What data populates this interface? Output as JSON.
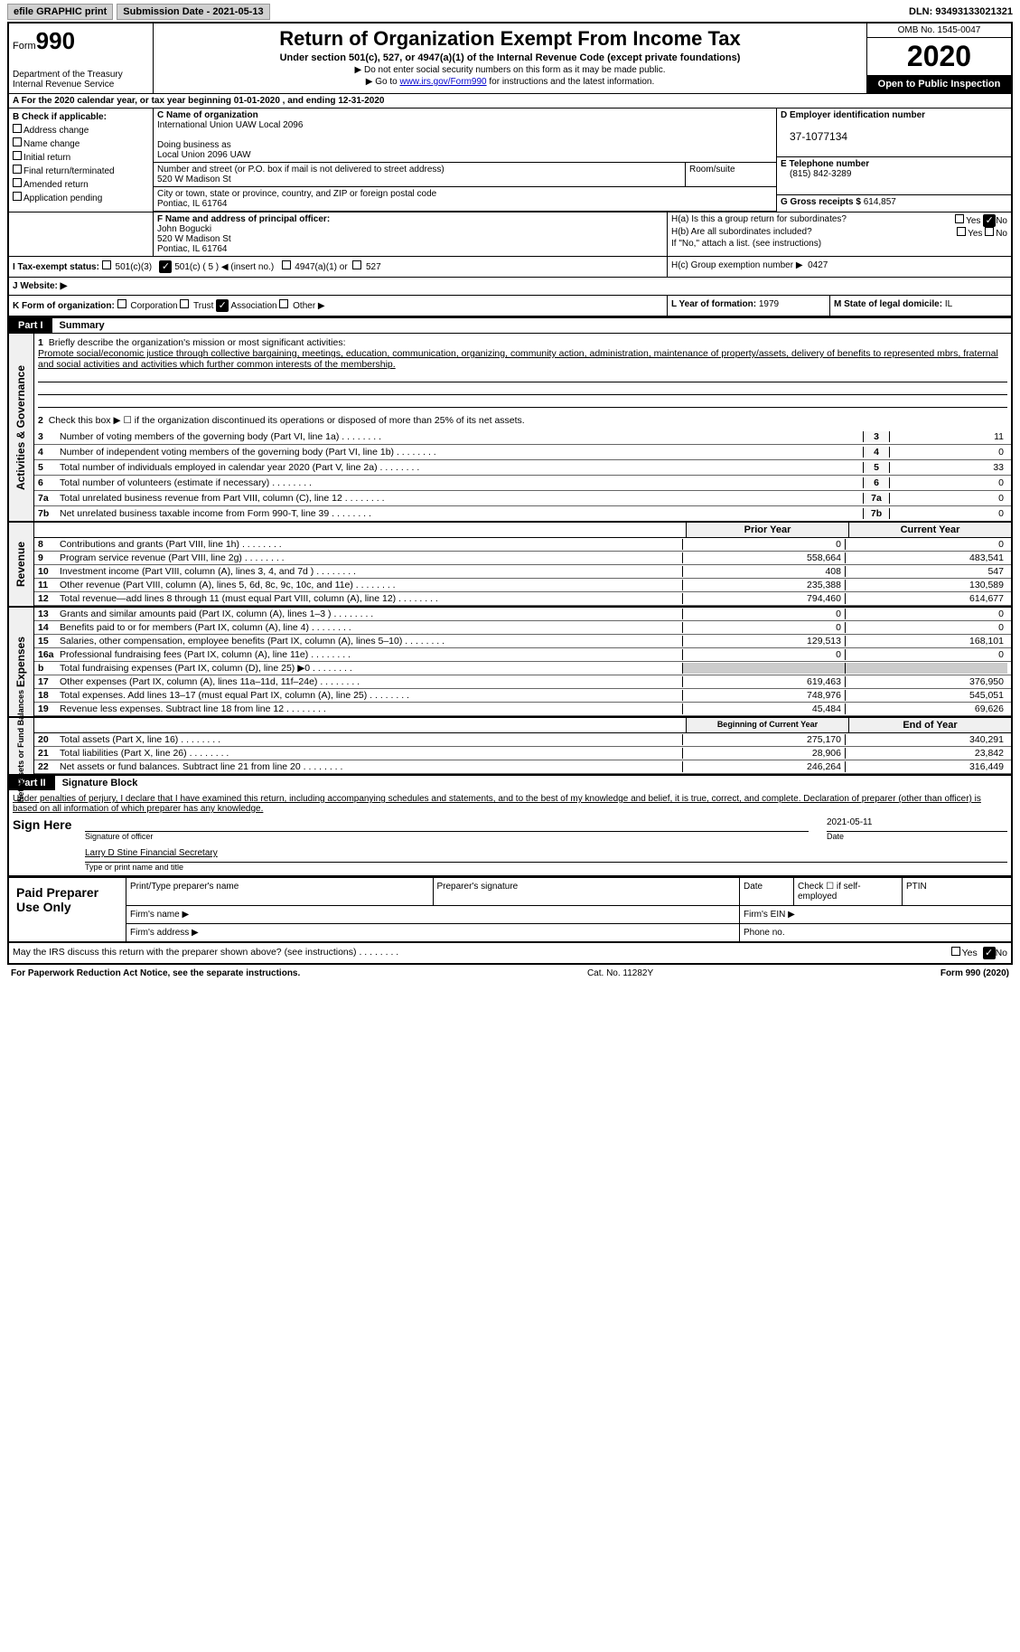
{
  "topbar": {
    "efile": "efile GRAPHIC print",
    "submission": "Submission Date - 2021-05-13",
    "dln_label": "DLN:",
    "dln": "93493133021321"
  },
  "header": {
    "form_label": "Form",
    "form_num": "990",
    "dept": "Department of the Treasury\nInternal Revenue Service",
    "title": "Return of Organization Exempt From Income Tax",
    "subtitle": "Under section 501(c), 527, or 4947(a)(1) of the Internal Revenue Code (except private foundations)",
    "note1": "▶ Do not enter social security numbers on this form as it may be made public.",
    "note2_pre": "▶ Go to ",
    "note2_link": "www.irs.gov/Form990",
    "note2_post": " for instructions and the latest information.",
    "omb": "OMB No. 1545-0047",
    "year": "2020",
    "open_pub": "Open to Public Inspection"
  },
  "row_a": "A For the 2020 calendar year, or tax year beginning 01-01-2020    , and ending 12-31-2020",
  "box_b": {
    "title": "B Check if applicable:",
    "opts": [
      "Address change",
      "Name change",
      "Initial return",
      "Final return/terminated",
      "Amended return",
      "Application pending"
    ]
  },
  "box_c": {
    "name_label": "C Name of organization",
    "name": "International Union UAW Local 2096",
    "dba_label": "Doing business as",
    "dba": "Local Union 2096 UAW",
    "addr_label": "Number and street (or P.O. box if mail is not delivered to street address)",
    "room_label": "Room/suite",
    "addr": "520 W Madison St",
    "city_label": "City or town, state or province, country, and ZIP or foreign postal code",
    "city": "Pontiac, IL  61764"
  },
  "box_d": {
    "label": "D Employer identification number",
    "val": "37-1077134"
  },
  "box_e": {
    "label": "E Telephone number",
    "val": "(815) 842-3289"
  },
  "box_g": {
    "label": "G Gross receipts $",
    "val": "614,857"
  },
  "box_f": {
    "label": "F  Name and address of principal officer:",
    "name": "John Bogucki",
    "addr1": "520 W Madison St",
    "addr2": "Pontiac, IL  61764"
  },
  "box_h": {
    "a": "H(a)  Is this a group return for subordinates?",
    "b": "H(b)  Are all subordinates included?",
    "note": "If \"No,\" attach a list. (see instructions)",
    "c": "H(c)  Group exemption number ▶",
    "c_val": "0427"
  },
  "box_i": {
    "label": "I   Tax-exempt status:",
    "o1": "501(c)(3)",
    "o2": "501(c) ( 5 ) ◀ (insert no.)",
    "o3": "4947(a)(1) or",
    "o4": "527"
  },
  "box_j": "J   Website: ▶",
  "box_k": {
    "label": "K Form of organization:",
    "o1": "Corporation",
    "o2": "Trust",
    "o3": "Association",
    "o4": "Other ▶"
  },
  "box_l": {
    "label": "L Year of formation:",
    "val": "1979"
  },
  "box_m": {
    "label": "M State of legal domicile:",
    "val": "IL"
  },
  "part1": {
    "label": "Part I",
    "title": "Summary"
  },
  "activities": {
    "tab": "Activities & Governance",
    "l1": "Briefly describe the organization's mission or most significant activities:",
    "mission": "Promote social/economic justice through collective bargaining, meetings, education, communication, organizing, community action, administration, maintenance of property/assets, delivery of benefits to represented mbrs, fraternal and social activities and activities which further common interests of the membership.",
    "l2": "Check this box ▶ ☐  if the organization discontinued its operations or disposed of more than 25% of its net assets.",
    "lines": [
      {
        "n": "3",
        "t": "Number of voting members of the governing body (Part VI, line 1a)",
        "v": "11"
      },
      {
        "n": "4",
        "t": "Number of independent voting members of the governing body (Part VI, line 1b)",
        "v": "0"
      },
      {
        "n": "5",
        "t": "Total number of individuals employed in calendar year 2020 (Part V, line 2a)",
        "v": "33"
      },
      {
        "n": "6",
        "t": "Total number of volunteers (estimate if necessary)",
        "v": "0"
      },
      {
        "n": "7a",
        "t": "Total unrelated business revenue from Part VIII, column (C), line 12",
        "v": "0"
      },
      {
        "n": "7b",
        "t": "Net unrelated business taxable income from Form 990-T, line 39",
        "v": "0"
      }
    ]
  },
  "revenue": {
    "tab": "Revenue",
    "hdr1": "Prior Year",
    "hdr2": "Current Year",
    "lines": [
      {
        "n": "8",
        "t": "Contributions and grants (Part VIII, line 1h)",
        "p": "0",
        "c": "0"
      },
      {
        "n": "9",
        "t": "Program service revenue (Part VIII, line 2g)",
        "p": "558,664",
        "c": "483,541"
      },
      {
        "n": "10",
        "t": "Investment income (Part VIII, column (A), lines 3, 4, and 7d )",
        "p": "408",
        "c": "547"
      },
      {
        "n": "11",
        "t": "Other revenue (Part VIII, column (A), lines 5, 6d, 8c, 9c, 10c, and 11e)",
        "p": "235,388",
        "c": "130,589"
      },
      {
        "n": "12",
        "t": "Total revenue—add lines 8 through 11 (must equal Part VIII, column (A), line 12)",
        "p": "794,460",
        "c": "614,677"
      }
    ]
  },
  "expenses": {
    "tab": "Expenses",
    "lines": [
      {
        "n": "13",
        "t": "Grants and similar amounts paid (Part IX, column (A), lines 1–3 )",
        "p": "0",
        "c": "0"
      },
      {
        "n": "14",
        "t": "Benefits paid to or for members (Part IX, column (A), line 4)",
        "p": "0",
        "c": "0"
      },
      {
        "n": "15",
        "t": "Salaries, other compensation, employee benefits (Part IX, column (A), lines 5–10)",
        "p": "129,513",
        "c": "168,101"
      },
      {
        "n": "16a",
        "t": "Professional fundraising fees (Part IX, column (A), line 11e)",
        "p": "0",
        "c": "0"
      },
      {
        "n": "b",
        "t": "Total fundraising expenses (Part IX, column (D), line 25) ▶0",
        "p": "",
        "c": "",
        "gray": true
      },
      {
        "n": "17",
        "t": "Other expenses (Part IX, column (A), lines 11a–11d, 11f–24e)",
        "p": "619,463",
        "c": "376,950"
      },
      {
        "n": "18",
        "t": "Total expenses. Add lines 13–17 (must equal Part IX, column (A), line 25)",
        "p": "748,976",
        "c": "545,051"
      },
      {
        "n": "19",
        "t": "Revenue less expenses. Subtract line 18 from line 12",
        "p": "45,484",
        "c": "69,626"
      }
    ]
  },
  "netassets": {
    "tab": "Net Assets or Fund Balances",
    "hdr1": "Beginning of Current Year",
    "hdr2": "End of Year",
    "lines": [
      {
        "n": "20",
        "t": "Total assets (Part X, line 16)",
        "p": "275,170",
        "c": "340,291"
      },
      {
        "n": "21",
        "t": "Total liabilities (Part X, line 26)",
        "p": "28,906",
        "c": "23,842"
      },
      {
        "n": "22",
        "t": "Net assets or fund balances. Subtract line 21 from line 20",
        "p": "246,264",
        "c": "316,449"
      }
    ]
  },
  "part2": {
    "label": "Part II",
    "title": "Signature Block"
  },
  "sig": {
    "decl": "Under penalties of perjury, I declare that I have examined this return, including accompanying schedules and statements, and to the best of my knowledge and belief, it is true, correct, and complete. Declaration of preparer (other than officer) is based on all information of which preparer has any knowledge.",
    "sign_here": "Sign Here",
    "sig_officer": "Signature of officer",
    "date": "2021-05-11",
    "date_label": "Date",
    "name": "Larry D Stine  Financial Secretary",
    "name_label": "Type or print name and title"
  },
  "prep": {
    "title": "Paid Preparer Use Only",
    "h1": "Print/Type preparer's name",
    "h2": "Preparer's signature",
    "h3": "Date",
    "h4": "Check ☐ if self-employed",
    "h5": "PTIN",
    "firm_name": "Firm's name  ▶",
    "firm_ein": "Firm's EIN ▶",
    "firm_addr": "Firm's address ▶",
    "phone": "Phone no."
  },
  "footer": {
    "discuss": "May the IRS discuss this return with the preparer shown above? (see instructions)",
    "yes": "Yes",
    "no": "No",
    "paperwork": "For Paperwork Reduction Act Notice, see the separate instructions.",
    "cat": "Cat. No. 11282Y",
    "form": "Form 990 (2020)"
  }
}
